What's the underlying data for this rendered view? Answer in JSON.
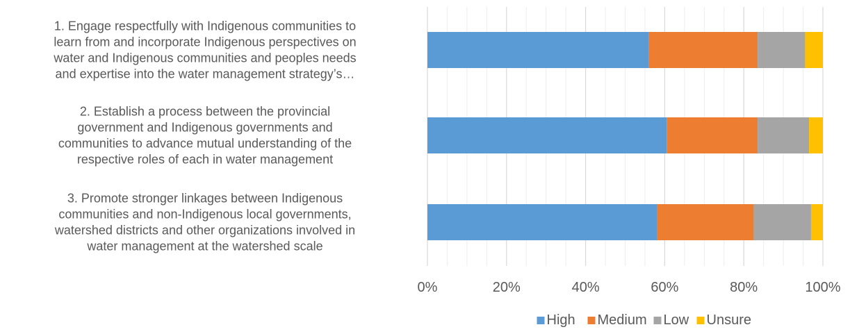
{
  "chart_data": {
    "type": "bar",
    "orientation": "horizontal",
    "stacked": "percent",
    "categories": [
      "1. Engage respectfully with Indigenous communities to learn from and incorporate Indigenous perspectives on water and Indigenous communities and peoples needs and expertise into the water management strategy’s…",
      "2. Establish a process between the provincial government and Indigenous governments and communities to advance mutual understanding of the respective roles of each in water management",
      "3. Promote stronger linkages between Indigenous communities and non-Indigenous local governments, watershed districts and other organizations involved in water management at the watershed scale"
    ],
    "category_lines": [
      [
        "1. Engage respectfully with Indigenous communities to",
        "learn from and incorporate Indigenous perspectives on",
        "water and Indigenous communities and peoples needs",
        "and expertise into the water management strategy’s…"
      ],
      [
        "2. Establish a process between the provincial",
        "government and Indigenous governments and",
        "communities to advance mutual understanding of the",
        "respective roles of each in water management"
      ],
      [
        "3. Promote stronger linkages between Indigenous",
        "communities and non-Indigenous local governments,",
        "watershed districts and other organizations involved in",
        "water management at the watershed scale"
      ]
    ],
    "series": [
      {
        "name": "High",
        "color": "#5B9BD5",
        "values": [
          56,
          60.5,
          58
        ]
      },
      {
        "name": "Medium",
        "color": "#ED7D31",
        "values": [
          27.5,
          23,
          24.5
        ]
      },
      {
        "name": "Low",
        "color": "#A5A5A5",
        "values": [
          12,
          13,
          14.5
        ]
      },
      {
        "name": "Unsure",
        "color": "#FFC000",
        "values": [
          4.5,
          3.5,
          3
        ]
      }
    ],
    "xlim": [
      0,
      100
    ],
    "x_ticks": [
      "0%",
      "20%",
      "40%",
      "60%",
      "80%",
      "100%"
    ],
    "grid": true,
    "legend_position": "bottom",
    "title": "",
    "xlabel": "",
    "ylabel": ""
  }
}
